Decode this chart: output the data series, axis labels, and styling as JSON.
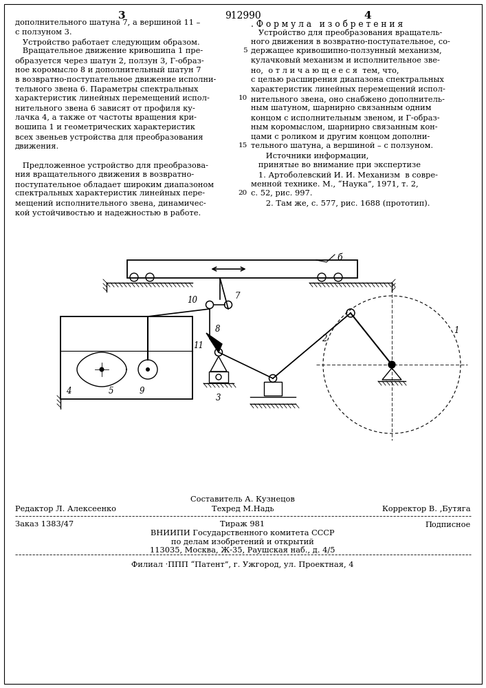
{
  "page_number_left": "3",
  "patent_number": "912990",
  "page_number_right": "4",
  "col_left_lines": [
    "дополнительного шатуна 7, а вершиной 11 –",
    "с ползуном 3.",
    "   Устройство работает следующим образом.",
    "   Вращательное движение кривошипа 1 пре-",
    "образуется через шатун 2, ползун 3, Г-образ-",
    "ное коромысло 8 и дополнительный шатун 7",
    "в возвратно-поступательное движение исполни-",
    "тельного звена 6. Параметры спектральных",
    "характеристик линейных перемещений испол-",
    "нительного звена 6 зависят от профиля ку-",
    "лачка 4, а также от частоты вращения кри-",
    "вошипа 1 и геометрических характеристик",
    "всех звеньев устройства для преобразования",
    "движения.",
    "",
    "   Предложенное устройство для преобразова-",
    "ния вращательного движения в возвратно-",
    "поступательное обладает широким диапазоном",
    "спектральных характеристик линейных пере-",
    "мещений исполнительного звена, динамичес-",
    "кой устойчивостью и надежностью в работе."
  ],
  "col_right_header": ". Ф о р м у л а   и з о б р е т е н и я",
  "col_right_lines": [
    "   Устройство для преобразования вращатель-",
    "ного движения в возвратно-поступательное, со-",
    "держащее кривошипно-ползунный механизм,",
    "кулачковый механизм и исполнительное зве-",
    "но,  о т л и ч а ю щ е е с я  тем, что,",
    "с целью расширения диапазона спектральных",
    "характеристик линейных перемещений испол-",
    "нительного звена, оно снабжено дополнитель-",
    "ным шатуном, шарнирно связанным одним",
    "концом с исполнительным звеном, и Г-образ-",
    "ным коромыслом, шарнирно связанным кон-",
    "цами с роликом и другим концом дополни-",
    "тельного шатуна, а вершиной – с ползуном.",
    "      Источники информации,",
    "   принятые во внимание при экспертизе",
    "   1. Артоболевский И. И. Механизм  в совре-",
    "менной технике. М., “Наука”, 1971, т. 2,",
    "с. 52, рис. 997.",
    "      2. Там же, с. 577, рис. 1688 (прототип)."
  ],
  "line_numbers": [
    [
      5,
      2
    ],
    [
      10,
      7
    ],
    [
      15,
      12
    ],
    [
      20,
      17
    ]
  ],
  "footer_left1": "Редактор Л. Алексеенко",
  "footer_center1": "Составитель А. Кузнецов",
  "footer_center2": "Техред М.Надь",
  "footer_right1": "Корректор В. ‚Бутяга",
  "footer_left2": "Заказ 1383/47",
  "footer_center3": "Тираж 981",
  "footer_right2": "Подписное",
  "footer_org1": "ВНИИПИ Государственного комитета СССР",
  "footer_org2": "по делам изобретений и открытий",
  "footer_org3": "113035, Москва, Ж-35, Раушская наб., д. 4/5",
  "footer_branch": "Филиал ·ППП “Патент”, г. Ужгород, ул. Проектная, 4",
  "bg_color": "#ffffff",
  "text_color": "#000000"
}
